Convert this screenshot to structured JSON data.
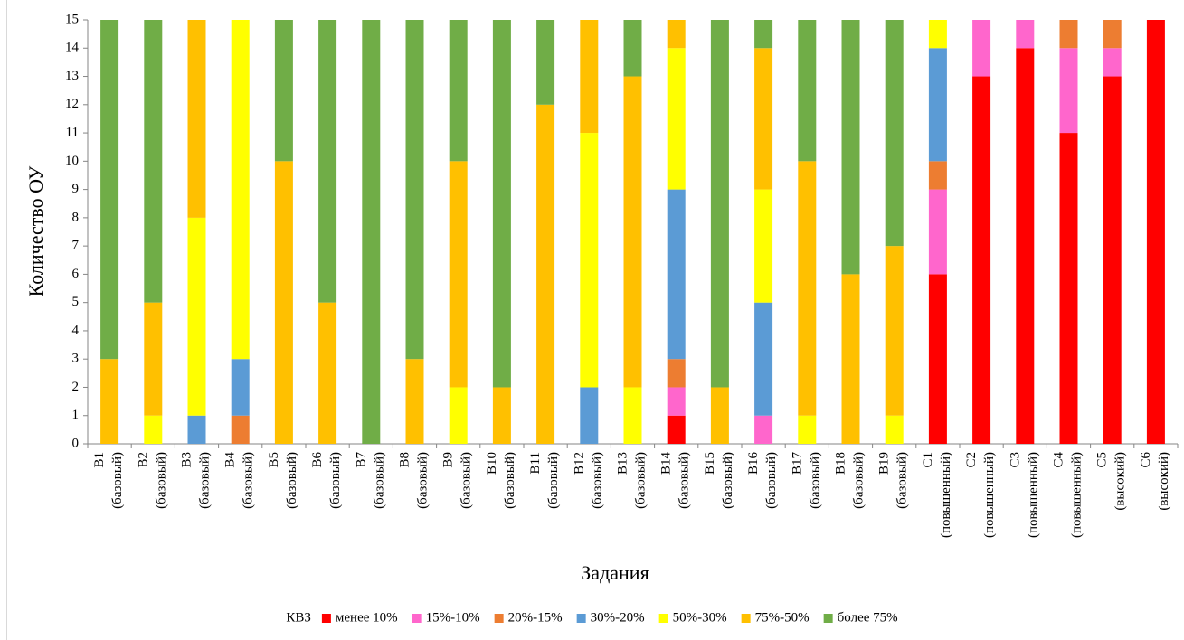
{
  "chart_data": {
    "type": "stacked_bar",
    "xlabel": "Задания",
    "ylabel": "Количество ОУ",
    "legend_title": "КВЗ",
    "categories": [
      "В1 (базовый)",
      "В2 (базовый)",
      "В3 (базовый)",
      "В4 (базовый)",
      "В5 (базовый)",
      "В6 (базовый)",
      "В7 (базовый)",
      "В8 (базовый)",
      "В9 (базовый)",
      "В10 (базовый)",
      "В11 (базовый)",
      "В12 (базовый)",
      "В13 (базовый)",
      "В14 (базовый)",
      "В15 (базовый)",
      "В16 (базовый)",
      "В17 (базовый)",
      "В18 (базовый)",
      "В19 (базовый)",
      "С1 (повышенный)",
      "С2 (повышенный)",
      "С3 (повышенный)",
      "С4 (повышенный)",
      "С5 (высокий)",
      "С6 (высокий)"
    ],
    "series": [
      {
        "name": "менее 10%",
        "color": "#ff0000",
        "values": [
          0,
          0,
          0,
          0,
          0,
          0,
          0,
          0,
          0,
          0,
          0,
          0,
          0,
          1,
          0,
          0,
          0,
          0,
          0,
          6,
          13,
          14,
          11,
          13,
          15
        ]
      },
      {
        "name": "15%-10%",
        "color": "#ff66cc",
        "values": [
          0,
          0,
          0,
          0,
          0,
          0,
          0,
          0,
          0,
          0,
          0,
          0,
          0,
          1,
          0,
          1,
          0,
          0,
          0,
          3,
          2,
          1,
          3,
          1,
          0
        ]
      },
      {
        "name": "20%-15%",
        "color": "#ed7d31",
        "values": [
          0,
          0,
          0,
          1,
          0,
          0,
          0,
          0,
          0,
          0,
          0,
          0,
          0,
          1,
          0,
          0,
          0,
          0,
          0,
          1,
          0,
          0,
          1,
          1,
          0
        ]
      },
      {
        "name": "30%-20%",
        "color": "#5b9bd5",
        "values": [
          0,
          0,
          1,
          2,
          0,
          0,
          0,
          0,
          0,
          0,
          0,
          2,
          0,
          6,
          0,
          4,
          0,
          0,
          0,
          4,
          0,
          0,
          0,
          0,
          0
        ]
      },
      {
        "name": "50%-30%",
        "color": "#ffff00",
        "values": [
          0,
          1,
          7,
          12,
          0,
          0,
          0,
          0,
          2,
          0,
          0,
          9,
          2,
          5,
          0,
          4,
          1,
          0,
          1,
          1,
          0,
          0,
          0,
          0,
          0
        ]
      },
      {
        "name": "75%-50%",
        "color": "#ffc000",
        "values": [
          3,
          4,
          7,
          0,
          10,
          5,
          0,
          3,
          8,
          2,
          12,
          4,
          11,
          1,
          2,
          5,
          9,
          6,
          6,
          0,
          0,
          0,
          0,
          0,
          0
        ]
      },
      {
        "name": "более 75%",
        "color": "#70ad47",
        "values": [
          12,
          10,
          0,
          0,
          5,
          10,
          15,
          12,
          5,
          13,
          3,
          0,
          2,
          0,
          13,
          1,
          5,
          9,
          8,
          0,
          0,
          0,
          0,
          0,
          0
        ]
      }
    ],
    "ylim": [
      0,
      15
    ],
    "yticks": [
      0,
      1,
      2,
      3,
      4,
      5,
      6,
      7,
      8,
      9,
      10,
      11,
      12,
      13,
      14,
      15
    ],
    "legend": "bottom"
  }
}
